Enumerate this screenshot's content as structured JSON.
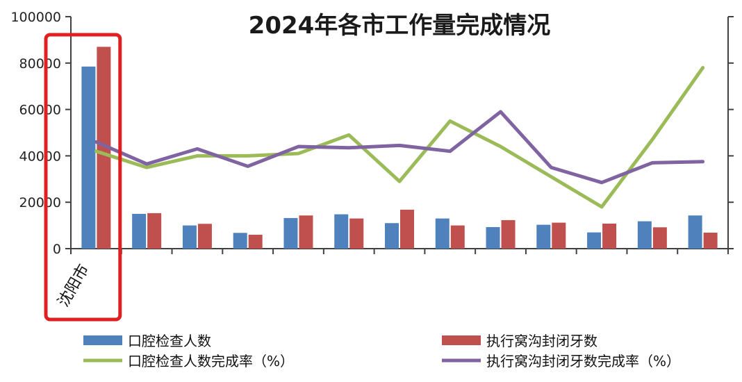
{
  "chart_data": {
    "type": "bar",
    "title": "2024年各市工作量完成情况",
    "categories": [
      "沈阳市",
      "",
      "",
      "",
      "",
      "",
      "",
      "",
      "",
      "",
      "",
      "",
      ""
    ],
    "y_left": {
      "ticks": [
        "0",
        "20000",
        "40000",
        "60000",
        "80000",
        "100000"
      ],
      "ylim": [
        0,
        100000
      ]
    },
    "y_right": {
      "ylim": [
        0,
        100
      ]
    },
    "series": [
      {
        "name": "口腔检查人数",
        "kind": "bar",
        "axis": "left",
        "values": [
          78500,
          15000,
          10000,
          6800,
          13200,
          14800,
          11000,
          13000,
          9300,
          10300,
          7000,
          11800,
          14300
        ]
      },
      {
        "name": "执行窝沟封闭牙数",
        "kind": "bar",
        "axis": "left",
        "values": [
          87000,
          15300,
          10700,
          6000,
          14300,
          13000,
          16800,
          10000,
          12300,
          11200,
          10800,
          9200,
          6900
        ]
      },
      {
        "name": "口腔检查人数完成率（%）",
        "kind": "line",
        "axis": "right",
        "values": [
          42,
          35,
          40,
          40,
          41,
          49,
          29,
          55,
          44,
          31,
          18,
          47,
          78
        ]
      },
      {
        "name": "执行窝沟封闭牙数完成率（%）",
        "kind": "line",
        "axis": "right",
        "values": [
          46,
          36.5,
          43,
          35.5,
          44,
          43.5,
          44.5,
          42,
          59,
          35,
          28.5,
          37,
          37.5
        ]
      }
    ],
    "highlight": {
      "category": "沈阳市",
      "color": "#e02020"
    },
    "legend": {
      "placement": "bottom"
    },
    "grid": false,
    "colors": {
      "bar1": "#4f81bd",
      "bar2": "#c0504d",
      "line1": "#9bbb59",
      "line2": "#8064a2",
      "axis": "#404040",
      "title": "#1a1a1a"
    }
  }
}
